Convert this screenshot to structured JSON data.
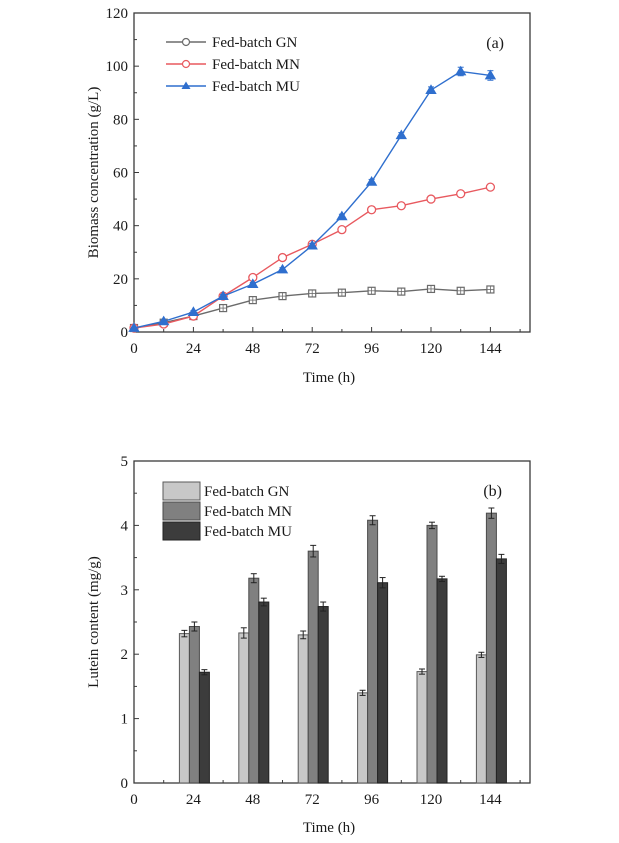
{
  "chart_data": [
    {
      "id": "a",
      "type": "line",
      "panel_label": "(a)",
      "title": "",
      "xlabel": "Time (h)",
      "ylabel": "Biomass concentration (g/L)",
      "xlim": [
        0,
        160
      ],
      "ylim": [
        0,
        120
      ],
      "xticks": [
        0,
        24,
        48,
        72,
        96,
        120,
        144
      ],
      "xtick_labels": [
        "0",
        "24",
        "48",
        "72",
        "96",
        "120",
        "144"
      ],
      "yticks": [
        0,
        20,
        40,
        60,
        80,
        100,
        120
      ],
      "ytick_labels": [
        "0",
        "20",
        "40",
        "60",
        "80",
        "100",
        "120"
      ],
      "grid": false,
      "legend_position": "top-left",
      "x": [
        0,
        12,
        24,
        36,
        48,
        60,
        72,
        84,
        96,
        108,
        120,
        132,
        144
      ],
      "series": [
        {
          "name": "Fed-batch GN",
          "color": "#6b6b6b",
          "marker": "open-square",
          "values": [
            1.5,
            3.5,
            6,
            9,
            12,
            13.5,
            14.5,
            14.8,
            15.5,
            15.2,
            16.2,
            15.5,
            16
          ]
        },
        {
          "name": "Fed-batch MN",
          "color": "#e8595f",
          "marker": "open-circle",
          "values": [
            1.5,
            3,
            6,
            13.5,
            20.5,
            28,
            33,
            38.5,
            46,
            47.5,
            50,
            52,
            54.5
          ]
        },
        {
          "name": "Fed-batch MU",
          "color": "#2f6fce",
          "marker": "filled-triangle",
          "values": [
            1.5,
            4,
            7.5,
            13.5,
            18,
            23.5,
            32.5,
            43.5,
            56.5,
            74,
            91,
            98,
            96.5
          ],
          "errors": [
            0.3,
            0.4,
            0.5,
            0.6,
            0.6,
            0.7,
            0.8,
            0.8,
            0.9,
            1.0,
            1.2,
            1.6,
            1.8
          ]
        }
      ]
    },
    {
      "id": "b",
      "type": "bar",
      "panel_label": "(b)",
      "title": "",
      "xlabel": "Time (h)",
      "ylabel": "Lutein content (mg/g)",
      "xlim": [
        0,
        160
      ],
      "ylim": [
        0,
        5
      ],
      "xticks": [
        0,
        24,
        48,
        72,
        96,
        120,
        144
      ],
      "xtick_labels": [
        "0",
        "24",
        "48",
        "72",
        "96",
        "120",
        "144"
      ],
      "yticks": [
        0,
        1,
        2,
        3,
        4,
        5
      ],
      "ytick_labels": [
        "0",
        "1",
        "2",
        "3",
        "4",
        "5"
      ],
      "grid": false,
      "legend_position": "top-left",
      "categories": [
        24,
        48,
        72,
        96,
        120,
        144
      ],
      "series": [
        {
          "name": "Fed-batch GN",
          "color": "#c8c8c8",
          "values": [
            2.32,
            2.33,
            2.3,
            1.4,
            1.73,
            1.99
          ],
          "errors": [
            0.05,
            0.08,
            0.06,
            0.04,
            0.04,
            0.04
          ]
        },
        {
          "name": "Fed-batch MN",
          "color": "#808080",
          "values": [
            2.43,
            3.18,
            3.6,
            4.08,
            4.0,
            4.19
          ],
          "errors": [
            0.07,
            0.07,
            0.09,
            0.07,
            0.05,
            0.08
          ]
        },
        {
          "name": "Fed-batch MU",
          "color": "#3c3c3c",
          "values": [
            1.72,
            2.81,
            2.74,
            3.11,
            3.17,
            3.48
          ],
          "errors": [
            0.04,
            0.06,
            0.07,
            0.08,
            0.04,
            0.07
          ]
        }
      ]
    }
  ]
}
